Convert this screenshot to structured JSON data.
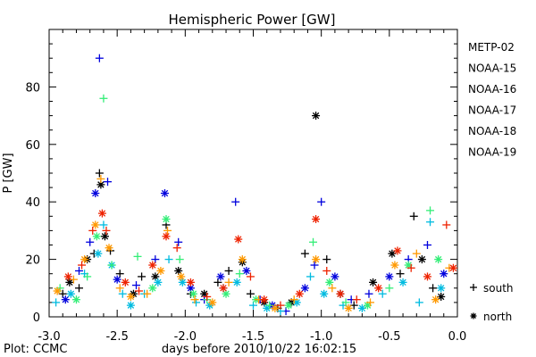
{
  "chart_data": {
    "type": "scatter",
    "title": "Hemispheric Power [GW]",
    "xlabel": "days before 2010/10/22 16:02:15",
    "ylabel": "P [GW]",
    "credit": "Plot: CCMC",
    "xlim": [
      -3.0,
      0.0
    ],
    "ylim": [
      0,
      100
    ],
    "x_ticks": [
      "-3.0",
      "-2.5",
      "-2.0",
      "-1.5",
      "-1.0",
      "-0.5",
      "0.0"
    ],
    "y_ticks": [
      "0",
      "20",
      "40",
      "60",
      "80"
    ],
    "grid": false,
    "legend_position": "right",
    "hemisphere_legend": [
      {
        "symbol": "+",
        "label": "south"
      },
      {
        "symbol": "*",
        "label": "north"
      }
    ],
    "series": [
      {
        "name": "METP-02",
        "color": "#000000",
        "points": [
          {
            "x": -2.9,
            "y": 8,
            "h": "s"
          },
          {
            "x": -2.85,
            "y": 12,
            "h": "n"
          },
          {
            "x": -2.78,
            "y": 10,
            "h": "s"
          },
          {
            "x": -2.72,
            "y": 20,
            "h": "n"
          },
          {
            "x": -2.67,
            "y": 22,
            "h": "s"
          },
          {
            "x": -2.63,
            "y": 50,
            "h": "s"
          },
          {
            "x": -2.62,
            "y": 46,
            "h": "n"
          },
          {
            "x": -2.59,
            "y": 28,
            "h": "n"
          },
          {
            "x": -2.55,
            "y": 23,
            "h": "s"
          },
          {
            "x": -2.48,
            "y": 15,
            "h": "s"
          },
          {
            "x": -2.38,
            "y": 8,
            "h": "n"
          },
          {
            "x": -2.32,
            "y": 14,
            "h": "s"
          },
          {
            "x": -2.22,
            "y": 14,
            "h": "n"
          },
          {
            "x": -2.14,
            "y": 32,
            "h": "s"
          },
          {
            "x": -2.05,
            "y": 16,
            "h": "n"
          },
          {
            "x": -1.96,
            "y": 8,
            "h": "s"
          },
          {
            "x": -1.86,
            "y": 8,
            "h": "n"
          },
          {
            "x": -1.76,
            "y": 12,
            "h": "s"
          },
          {
            "x": -1.68,
            "y": 16,
            "h": "s"
          },
          {
            "x": -1.58,
            "y": 19,
            "h": "n"
          },
          {
            "x": -1.52,
            "y": 8,
            "h": "s"
          },
          {
            "x": -1.42,
            "y": 5,
            "h": "n"
          },
          {
            "x": -1.32,
            "y": 3,
            "h": "s"
          },
          {
            "x": -1.22,
            "y": 5,
            "h": "n"
          },
          {
            "x": -1.12,
            "y": 22,
            "h": "s"
          },
          {
            "x": -1.04,
            "y": 70,
            "h": "n"
          },
          {
            "x": -0.96,
            "y": 20,
            "h": "s"
          },
          {
            "x": -0.86,
            "y": 8,
            "h": "n"
          },
          {
            "x": -0.76,
            "y": 4,
            "h": "s"
          },
          {
            "x": -0.62,
            "y": 12,
            "h": "n"
          },
          {
            "x": -0.48,
            "y": 22,
            "h": "n"
          },
          {
            "x": -0.42,
            "y": 15,
            "h": "s"
          },
          {
            "x": -0.32,
            "y": 35,
            "h": "s"
          },
          {
            "x": -0.26,
            "y": 20,
            "h": "n"
          },
          {
            "x": -0.18,
            "y": 10,
            "h": "s"
          },
          {
            "x": -0.12,
            "y": 7,
            "h": "n"
          }
        ]
      },
      {
        "name": "NOAA-15",
        "color": "#0000dd",
        "points": [
          {
            "x": -2.88,
            "y": 6,
            "h": "n"
          },
          {
            "x": -2.78,
            "y": 16,
            "h": "s"
          },
          {
            "x": -2.7,
            "y": 26,
            "h": "s"
          },
          {
            "x": -2.66,
            "y": 43,
            "h": "n"
          },
          {
            "x": -2.63,
            "y": 90,
            "h": "s"
          },
          {
            "x": -2.57,
            "y": 47,
            "h": "s"
          },
          {
            "x": -2.5,
            "y": 13,
            "h": "n"
          },
          {
            "x": -2.36,
            "y": 11,
            "h": "s"
          },
          {
            "x": -2.22,
            "y": 20,
            "h": "s"
          },
          {
            "x": -2.15,
            "y": 43,
            "h": "n"
          },
          {
            "x": -2.05,
            "y": 26,
            "h": "s"
          },
          {
            "x": -1.96,
            "y": 10,
            "h": "n"
          },
          {
            "x": -1.86,
            "y": 6,
            "h": "s"
          },
          {
            "x": -1.74,
            "y": 14,
            "h": "n"
          },
          {
            "x": -1.63,
            "y": 40,
            "h": "s"
          },
          {
            "x": -1.55,
            "y": 16,
            "h": "n"
          },
          {
            "x": -1.45,
            "y": 6,
            "h": "s"
          },
          {
            "x": -1.36,
            "y": 4,
            "h": "n"
          },
          {
            "x": -1.26,
            "y": 2,
            "h": "s"
          },
          {
            "x": -1.12,
            "y": 10,
            "h": "n"
          },
          {
            "x": -1.05,
            "y": 18,
            "h": "s"
          },
          {
            "x": -1.0,
            "y": 40,
            "h": "s"
          },
          {
            "x": -0.9,
            "y": 14,
            "h": "n"
          },
          {
            "x": -0.78,
            "y": 6,
            "h": "s"
          },
          {
            "x": -0.65,
            "y": 8,
            "h": "s"
          },
          {
            "x": -0.5,
            "y": 14,
            "h": "n"
          },
          {
            "x": -0.36,
            "y": 20,
            "h": "s"
          },
          {
            "x": -0.22,
            "y": 25,
            "h": "s"
          },
          {
            "x": -0.1,
            "y": 15,
            "h": "n"
          }
        ]
      },
      {
        "name": "NOAA-16",
        "color": "#00bbe0",
        "points": [
          {
            "x": -2.95,
            "y": 5,
            "h": "s"
          },
          {
            "x": -2.84,
            "y": 8,
            "h": "n"
          },
          {
            "x": -2.74,
            "y": 15,
            "h": "s"
          },
          {
            "x": -2.64,
            "y": 22,
            "h": "n"
          },
          {
            "x": -2.6,
            "y": 32,
            "h": "s"
          },
          {
            "x": -2.54,
            "y": 18,
            "h": "n"
          },
          {
            "x": -2.46,
            "y": 8,
            "h": "s"
          },
          {
            "x": -2.4,
            "y": 4,
            "h": "n"
          },
          {
            "x": -2.3,
            "y": 8,
            "h": "s"
          },
          {
            "x": -2.2,
            "y": 12,
            "h": "n"
          },
          {
            "x": -2.12,
            "y": 20,
            "h": "s"
          },
          {
            "x": -2.02,
            "y": 12,
            "h": "n"
          },
          {
            "x": -1.92,
            "y": 5,
            "h": "s"
          },
          {
            "x": -1.82,
            "y": 4,
            "h": "n"
          },
          {
            "x": -1.72,
            "y": 10,
            "h": "s"
          },
          {
            "x": -1.62,
            "y": 12,
            "h": "n"
          },
          {
            "x": -1.5,
            "y": 4,
            "h": "s"
          },
          {
            "x": -1.4,
            "y": 3,
            "h": "n"
          },
          {
            "x": -1.3,
            "y": 2,
            "h": "s"
          },
          {
            "x": -1.18,
            "y": 5,
            "h": "n"
          },
          {
            "x": -1.08,
            "y": 14,
            "h": "s"
          },
          {
            "x": -0.98,
            "y": 8,
            "h": "n"
          },
          {
            "x": -0.84,
            "y": 4,
            "h": "s"
          },
          {
            "x": -0.7,
            "y": 3,
            "h": "n"
          },
          {
            "x": -0.55,
            "y": 8,
            "h": "s"
          },
          {
            "x": -0.4,
            "y": 12,
            "h": "n"
          },
          {
            "x": -0.28,
            "y": 5,
            "h": "s"
          },
          {
            "x": -0.2,
            "y": 33,
            "h": "s"
          },
          {
            "x": -0.12,
            "y": 10,
            "h": "n"
          }
        ]
      },
      {
        "name": "NOAA-17",
        "color": "#33ee77",
        "points": [
          {
            "x": -2.92,
            "y": 10,
            "h": "s"
          },
          {
            "x": -2.8,
            "y": 6,
            "h": "n"
          },
          {
            "x": -2.72,
            "y": 14,
            "h": "s"
          },
          {
            "x": -2.65,
            "y": 28,
            "h": "n"
          },
          {
            "x": -2.6,
            "y": 76,
            "h": "s"
          },
          {
            "x": -2.54,
            "y": 18,
            "h": "s"
          },
          {
            "x": -2.35,
            "y": 21,
            "h": "s"
          },
          {
            "x": -2.24,
            "y": 10,
            "h": "n"
          },
          {
            "x": -2.14,
            "y": 34,
            "h": "n"
          },
          {
            "x": -2.04,
            "y": 20,
            "h": "s"
          },
          {
            "x": -1.94,
            "y": 8,
            "h": "n"
          },
          {
            "x": -1.84,
            "y": 6,
            "h": "s"
          },
          {
            "x": -1.7,
            "y": 8,
            "h": "n"
          },
          {
            "x": -1.6,
            "y": 15,
            "h": "s"
          },
          {
            "x": -1.48,
            "y": 6,
            "h": "n"
          },
          {
            "x": -1.38,
            "y": 4,
            "h": "s"
          },
          {
            "x": -1.24,
            "y": 4,
            "h": "n"
          },
          {
            "x": -1.06,
            "y": 26,
            "h": "s"
          },
          {
            "x": -0.94,
            "y": 12,
            "h": "n"
          },
          {
            "x": -0.82,
            "y": 5,
            "h": "s"
          },
          {
            "x": -0.66,
            "y": 4,
            "h": "n"
          },
          {
            "x": -0.5,
            "y": 10,
            "h": "s"
          },
          {
            "x": -0.36,
            "y": 18,
            "h": "n"
          },
          {
            "x": -0.2,
            "y": 37,
            "h": "s"
          },
          {
            "x": -0.14,
            "y": 20,
            "h": "n"
          }
        ]
      },
      {
        "name": "NOAA-18",
        "color": "#ff9900",
        "points": [
          {
            "x": -2.94,
            "y": 9,
            "h": "n"
          },
          {
            "x": -2.82,
            "y": 13,
            "h": "s"
          },
          {
            "x": -2.74,
            "y": 20,
            "h": "n"
          },
          {
            "x": -2.66,
            "y": 32,
            "h": "n"
          },
          {
            "x": -2.62,
            "y": 48,
            "h": "s"
          },
          {
            "x": -2.56,
            "y": 24,
            "h": "n"
          },
          {
            "x": -2.48,
            "y": 10,
            "h": "s"
          },
          {
            "x": -2.4,
            "y": 7,
            "h": "n"
          },
          {
            "x": -2.28,
            "y": 8,
            "h": "s"
          },
          {
            "x": -2.18,
            "y": 16,
            "h": "n"
          },
          {
            "x": -2.13,
            "y": 30,
            "h": "s"
          },
          {
            "x": -2.03,
            "y": 14,
            "h": "n"
          },
          {
            "x": -1.93,
            "y": 6,
            "h": "s"
          },
          {
            "x": -1.8,
            "y": 5,
            "h": "n"
          },
          {
            "x": -1.68,
            "y": 12,
            "h": "s"
          },
          {
            "x": -1.58,
            "y": 20,
            "h": "n"
          },
          {
            "x": -1.46,
            "y": 6,
            "h": "s"
          },
          {
            "x": -1.34,
            "y": 3,
            "h": "n"
          },
          {
            "x": -1.2,
            "y": 6,
            "h": "s"
          },
          {
            "x": -1.04,
            "y": 20,
            "h": "n"
          },
          {
            "x": -0.92,
            "y": 10,
            "h": "s"
          },
          {
            "x": -0.8,
            "y": 3,
            "h": "n"
          },
          {
            "x": -0.64,
            "y": 5,
            "h": "s"
          },
          {
            "x": -0.46,
            "y": 18,
            "h": "n"
          },
          {
            "x": -0.3,
            "y": 22,
            "h": "s"
          },
          {
            "x": -0.16,
            "y": 6,
            "h": "n"
          },
          {
            "x": -0.06,
            "y": 17,
            "h": "s"
          }
        ]
      },
      {
        "name": "NOAA-19",
        "color": "#ee2200",
        "points": [
          {
            "x": -2.86,
            "y": 14,
            "h": "n"
          },
          {
            "x": -2.76,
            "y": 18,
            "h": "s"
          },
          {
            "x": -2.68,
            "y": 30,
            "h": "s"
          },
          {
            "x": -2.61,
            "y": 36,
            "h": "n"
          },
          {
            "x": -2.58,
            "y": 30,
            "h": "s"
          },
          {
            "x": -2.44,
            "y": 12,
            "h": "n"
          },
          {
            "x": -2.34,
            "y": 9,
            "h": "s"
          },
          {
            "x": -2.24,
            "y": 18,
            "h": "n"
          },
          {
            "x": -2.14,
            "y": 28,
            "h": "n"
          },
          {
            "x": -2.06,
            "y": 24,
            "h": "s"
          },
          {
            "x": -1.96,
            "y": 12,
            "h": "n"
          },
          {
            "x": -1.84,
            "y": 7,
            "h": "s"
          },
          {
            "x": -1.72,
            "y": 10,
            "h": "n"
          },
          {
            "x": -1.61,
            "y": 27,
            "h": "n"
          },
          {
            "x": -1.52,
            "y": 14,
            "h": "s"
          },
          {
            "x": -1.42,
            "y": 6,
            "h": "n"
          },
          {
            "x": -1.3,
            "y": 4,
            "h": "s"
          },
          {
            "x": -1.16,
            "y": 8,
            "h": "n"
          },
          {
            "x": -1.04,
            "y": 34,
            "h": "n"
          },
          {
            "x": -0.96,
            "y": 16,
            "h": "s"
          },
          {
            "x": -0.86,
            "y": 8,
            "h": "n"
          },
          {
            "x": -0.74,
            "y": 6,
            "h": "s"
          },
          {
            "x": -0.58,
            "y": 10,
            "h": "n"
          },
          {
            "x": -0.44,
            "y": 23,
            "h": "n"
          },
          {
            "x": -0.34,
            "y": 17,
            "h": "s"
          },
          {
            "x": -0.22,
            "y": 14,
            "h": "n"
          },
          {
            "x": -0.08,
            "y": 32,
            "h": "s"
          },
          {
            "x": -0.03,
            "y": 17,
            "h": "n"
          }
        ]
      }
    ]
  }
}
